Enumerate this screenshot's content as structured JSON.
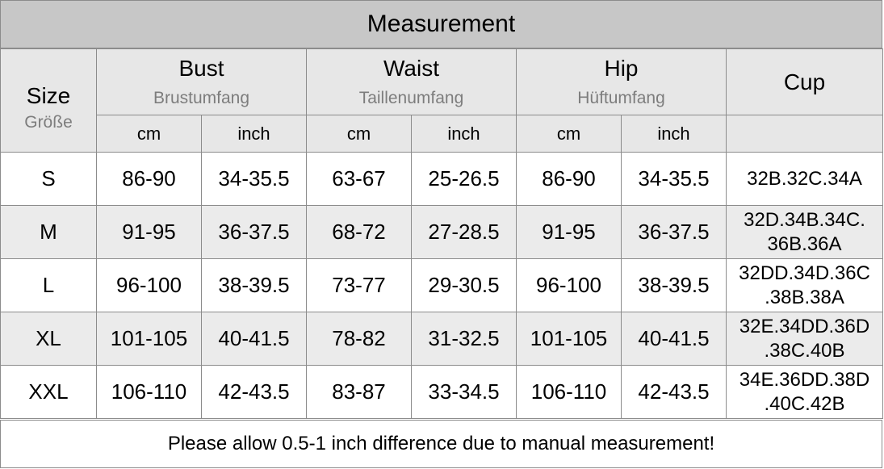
{
  "title": "Measurement",
  "headers": {
    "size": {
      "main": "Size",
      "sub": "Größe"
    },
    "bust": {
      "main": "Bust",
      "sub": "Brustumfang"
    },
    "waist": {
      "main": "Waist",
      "sub": "Taillenumfang"
    },
    "hip": {
      "main": "Hip",
      "sub": "Hüftumfang"
    },
    "cup": {
      "main": "Cup"
    },
    "units": [
      "cm",
      "inch",
      "cm",
      "inch",
      "cm",
      "inch"
    ]
  },
  "rows": [
    {
      "size": "S",
      "bust_cm": "86-90",
      "bust_inch": "34-35.5",
      "waist_cm": "63-67",
      "waist_inch": "25-26.5",
      "hip_cm": "86-90",
      "hip_inch": "34-35.5",
      "cup": [
        "32B.32C.34A"
      ]
    },
    {
      "size": "M",
      "bust_cm": "91-95",
      "bust_inch": "36-37.5",
      "waist_cm": "68-72",
      "waist_inch": "27-28.5",
      "hip_cm": "91-95",
      "hip_inch": "36-37.5",
      "cup": [
        "32D.34B.34C.",
        "36B.36A"
      ]
    },
    {
      "size": "L",
      "bust_cm": "96-100",
      "bust_inch": "38-39.5",
      "waist_cm": "73-77",
      "waist_inch": "29-30.5",
      "hip_cm": "96-100",
      "hip_inch": "38-39.5",
      "cup": [
        "32DD.34D.36C",
        ".38B.38A"
      ]
    },
    {
      "size": "XL",
      "bust_cm": "101-105",
      "bust_inch": "40-41.5",
      "waist_cm": "78-82",
      "waist_inch": "31-32.5",
      "hip_cm": "101-105",
      "hip_inch": "40-41.5",
      "cup": [
        "32E.34DD.36D",
        ".38C.40B"
      ]
    },
    {
      "size": "XXL",
      "bust_cm": "106-110",
      "bust_inch": "42-43.5",
      "waist_cm": "83-87",
      "waist_inch": "33-34.5",
      "hip_cm": "106-110",
      "hip_inch": "42-43.5",
      "cup": [
        "34E.36DD.38D",
        ".40C.42B"
      ]
    }
  ],
  "footer": "Please allow 0.5-1 inch difference due to manual measurement!"
}
